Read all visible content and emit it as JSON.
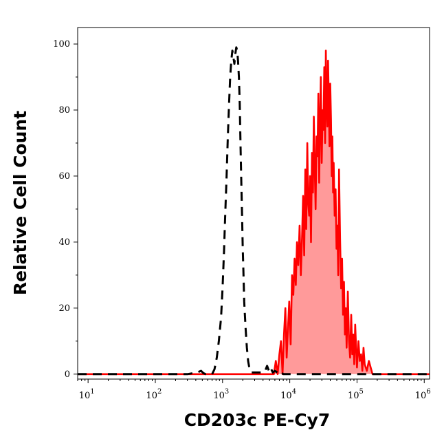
{
  "chart_data": {
    "type": "area",
    "title": "",
    "xlabel": "CD203c PE-Cy7",
    "ylabel": "Relative Cell Count",
    "xscale": "log",
    "xlim": [
      7,
      1200000
    ],
    "ylim": [
      -1.5,
      105
    ],
    "grid": false,
    "x_ticks": [
      {
        "base": "10",
        "exp": "1",
        "value": 10
      },
      {
        "base": "10",
        "exp": "2",
        "value": 100
      },
      {
        "base": "10",
        "exp": "3",
        "value": 1000
      },
      {
        "base": "10",
        "exp": "4",
        "value": 10000
      },
      {
        "base": "10",
        "exp": "5",
        "value": 100000
      },
      {
        "base": "10",
        "exp": "6",
        "value": 1000000
      }
    ],
    "y_ticks": [
      0,
      20,
      40,
      60,
      80,
      100
    ],
    "series": [
      {
        "style": "dashed",
        "color": "#000000",
        "fill": false,
        "x": [
          7,
          30,
          100,
          300,
          420,
          480,
          520,
          560,
          600,
          650,
          700,
          760,
          820,
          880,
          950,
          1000,
          1050,
          1100,
          1150,
          1200,
          1250,
          1300,
          1350,
          1400,
          1450,
          1500,
          1550,
          1600,
          1650,
          1700,
          1750,
          1800,
          1850,
          1900,
          1950,
          2000,
          2050,
          2100,
          2200,
          2300,
          2400,
          2500,
          2600,
          2700,
          2850,
          3000,
          3200,
          3400,
          3700,
          4000,
          4300,
          4600,
          4800,
          5000,
          5300,
          5600,
          6000,
          6500,
          7000,
          7500,
          8000,
          9000,
          12000,
          30000,
          100000,
          1200000
        ],
        "y": [
          0,
          0,
          0,
          0,
          0.5,
          1,
          0.3,
          0,
          0,
          0,
          0,
          1.5,
          5,
          10,
          17,
          26,
          37,
          49,
          60,
          72,
          82,
          90,
          95,
          98,
          96,
          94,
          97,
          99,
          98,
          95,
          90,
          82,
          70,
          58,
          48,
          38,
          30,
          22,
          14,
          8,
          4,
          2,
          1,
          0.5,
          0.5,
          0.5,
          0.5,
          0.5,
          0.5,
          1,
          1,
          2.5,
          1.5,
          0.5,
          1.5,
          0.5,
          1,
          0.5,
          0,
          0.5,
          0,
          0,
          0,
          0,
          0,
          0
        ]
      },
      {
        "style": "solid",
        "color": "#ff0000",
        "fill": true,
        "fill_color": "#ff9a9a",
        "x": [
          7,
          30,
          100,
          300,
          1000,
          3000,
          5000,
          5800,
          6200,
          6600,
          7000,
          7400,
          7800,
          8200,
          8600,
          9000,
          9400,
          9800,
          10300,
          10800,
          11300,
          11800,
          12300,
          12800,
          13400,
          14000,
          14600,
          15200,
          15800,
          16400,
          17000,
          17600,
          18200,
          18800,
          19400,
          20000,
          20700,
          21400,
          22100,
          22800,
          23500,
          24200,
          25000,
          25800,
          26600,
          27400,
          28200,
          29000,
          29900,
          30800,
          31700,
          32600,
          33500,
          34400,
          35300,
          36200,
          37100,
          38000,
          39000,
          40000,
          41000,
          42000,
          43000,
          44000,
          45000,
          46500,
          48000,
          49500,
          51000,
          52500,
          54000,
          56000,
          58000,
          60000,
          62000,
          64000,
          66000,
          68000,
          70000,
          73000,
          76000,
          79000,
          82000,
          85000,
          88000,
          91000,
          94000,
          97000,
          100000,
          105000,
          110000,
          115000,
          120000,
          125000,
          130000,
          140000,
          150000,
          170000,
          200000,
          400000,
          1200000
        ],
        "y": [
          0,
          0,
          0,
          0,
          0,
          0,
          0,
          0,
          4,
          0,
          6,
          10,
          0,
          12,
          20,
          5,
          14,
          22,
          9,
          30,
          24,
          35,
          27,
          40,
          33,
          45,
          30,
          41,
          54,
          36,
          62,
          44,
          70,
          52,
          48,
          60,
          40,
          67,
          55,
          78,
          63,
          50,
          72,
          66,
          85,
          58,
          77,
          90,
          64,
          80,
          74,
          93,
          70,
          98,
          81,
          75,
          95,
          84,
          69,
          88,
          77,
          60,
          72,
          55,
          64,
          48,
          56,
          38,
          45,
          30,
          62,
          41,
          26,
          35,
          18,
          28,
          12,
          20,
          8,
          25,
          10,
          5,
          18,
          6,
          12,
          3,
          15,
          8,
          2,
          10,
          4,
          6,
          1,
          8,
          3,
          1,
          4,
          0,
          0,
          0,
          0
        ]
      }
    ]
  }
}
